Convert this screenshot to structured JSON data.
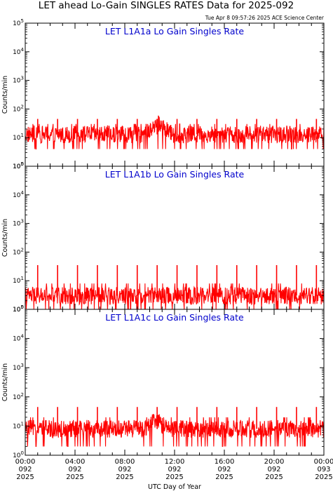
{
  "figure": {
    "title": "LET ahead Lo-Gain SINGLES RATES Data for 2025-092",
    "timestamp": "Tue Apr  8 09:57:26 2025 ACE Science Center",
    "xlabel": "UTC Day of Year"
  },
  "colors": {
    "series": "#ff0000",
    "panel_title": "#0000cc",
    "axes": "#000000"
  },
  "chart_data": [
    {
      "type": "line",
      "title": "LET L1A1a Lo Gain Singles Rate",
      "ylabel": "Counts/min",
      "yscale": "log",
      "ylim": [
        1,
        100000
      ],
      "xlim": [
        0,
        24
      ],
      "x_unit": "hours UTC",
      "y_tick_labels": [
        "10^0",
        "10^1",
        "10^2",
        "10^3",
        "10^4",
        "10^5"
      ],
      "baseline": 13,
      "noise_low": 4,
      "noise_high": 30,
      "spike_value": 45,
      "spike_hours": [
        1.0,
        2.6,
        4.2,
        5.8,
        7.4,
        9.0,
        10.6,
        12.2,
        13.8,
        15.4,
        17.0,
        18.6,
        20.2,
        21.8,
        23.4
      ],
      "bump": {
        "center": 10.7,
        "peak": 30
      }
    },
    {
      "type": "line",
      "title": "LET L1A1b Lo Gain Singles Rate",
      "ylabel": "Counts/min",
      "yscale": "log",
      "ylim": [
        1,
        100000
      ],
      "xlim": [
        0,
        24
      ],
      "x_unit": "hours UTC",
      "y_tick_labels": [
        "10^0",
        "10^1",
        "10^2",
        "10^3",
        "10^4",
        "10^5"
      ],
      "baseline": 3,
      "noise_low": 1,
      "noise_high": 8,
      "spike_value": 35,
      "spike_hours": [
        1.0,
        2.6,
        4.2,
        5.8,
        7.4,
        9.0,
        10.6,
        12.2,
        13.8,
        15.4,
        17.0,
        18.6,
        20.2,
        21.8,
        23.4
      ],
      "bump": null
    },
    {
      "type": "line",
      "title": "LET L1A1c Lo Gain Singles Rate",
      "ylabel": "Counts/min",
      "yscale": "log",
      "ylim": [
        1,
        100000
      ],
      "xlim": [
        0,
        24
      ],
      "x_unit": "hours UTC",
      "y_tick_labels": [
        "10^0",
        "10^1",
        "10^2",
        "10^3",
        "10^4",
        "10^5"
      ],
      "baseline": 8,
      "noise_low": 2,
      "noise_high": 20,
      "spike_value": 45,
      "spike_hours": [
        1.0,
        2.6,
        4.2,
        5.8,
        7.4,
        9.0,
        10.6,
        12.2,
        13.8,
        15.4,
        17.0,
        18.6,
        20.2,
        21.8,
        23.4
      ],
      "bump": {
        "center": 10.5,
        "peak": 14
      }
    }
  ],
  "x_ticks": [
    {
      "hour": 0,
      "lines": [
        "00:00",
        "092",
        "2025"
      ]
    },
    {
      "hour": 4,
      "lines": [
        "04:00",
        "092",
        "2025"
      ]
    },
    {
      "hour": 8,
      "lines": [
        "08:00",
        "092",
        "2025"
      ]
    },
    {
      "hour": 12,
      "lines": [
        "12:00",
        "092",
        "2025"
      ]
    },
    {
      "hour": 16,
      "lines": [
        "16:00",
        "092",
        "2025"
      ]
    },
    {
      "hour": 20,
      "lines": [
        "20:00",
        "092",
        "2025"
      ]
    },
    {
      "hour": 24,
      "lines": [
        "00:00",
        "093",
        "2025"
      ]
    }
  ]
}
